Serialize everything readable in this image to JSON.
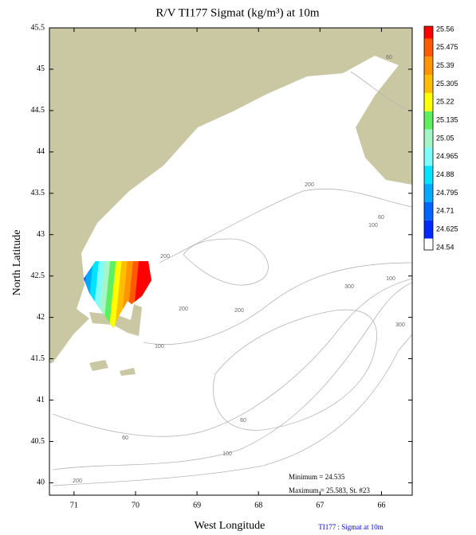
{
  "chart_data": {
    "type": "contour",
    "title": "R/V TI177 Sigmat (kg/m³) at 10m",
    "x_label": "West Longitude",
    "y_label": "North Latitude",
    "xlim": [
      71.4,
      65.5
    ],
    "ylim": [
      39.85,
      45.5
    ],
    "xticks": [
      71,
      70,
      69,
      68,
      67,
      66
    ],
    "yticks": [
      45.5,
      45,
      44.5,
      44,
      43.5,
      43,
      42.5,
      42,
      41.5,
      41,
      40.5,
      40
    ],
    "colorbar": {
      "levels": [
        25.56,
        25.475,
        25.39,
        25.305,
        25.22,
        25.135,
        25.05,
        24.965,
        24.88,
        24.795,
        24.71,
        24.625,
        24.54
      ],
      "colors": [
        "#ff0000",
        "#ff5a00",
        "#ff9600",
        "#ffbe00",
        "#ffff00",
        "#5ff05f",
        "#a6f5c8",
        "#7dfcfc",
        "#00e4ff",
        "#00aaff",
        "#0064ff",
        "#0028ff"
      ]
    },
    "annotations": [
      "Minimum = 24.535",
      "Maximum = 25.583, St. #23"
    ],
    "footer": "TI177 : Sigmat at 10m",
    "contour_labels": [
      "60",
      "200",
      "60",
      "100",
      "200",
      "300",
      "100",
      "200",
      "200",
      "300",
      "100",
      "60",
      "60",
      "100",
      "200"
    ]
  }
}
